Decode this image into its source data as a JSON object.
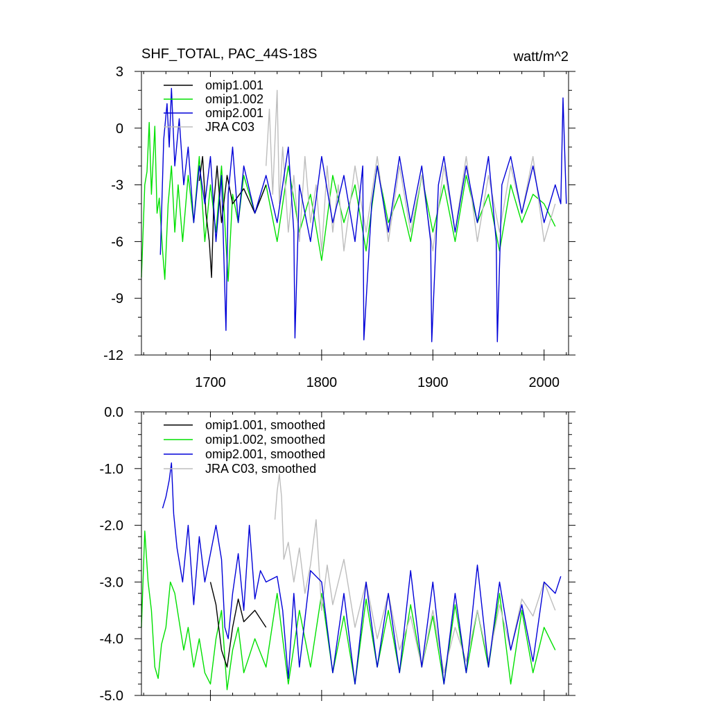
{
  "chart_data": [
    {
      "type": "line",
      "title": "SHF_TOTAL, PAC_44S-18S",
      "units": "watt/m^2",
      "xlim": [
        1638,
        2022
      ],
      "ylim": [
        -12,
        3
      ],
      "x_ticks": [
        1700,
        1800,
        1900,
        2000
      ],
      "x_tick_labels": [
        "1700",
        "1800",
        "1900",
        "2000"
      ],
      "y_ticks": [
        3,
        0,
        -3,
        -6,
        -9,
        -12
      ],
      "y_tick_labels": [
        "3",
        "0",
        "-3",
        "-6",
        "-9",
        "-12"
      ],
      "grid": false,
      "legend_position": "top-left",
      "colors": {
        "omip1.001": "#000000",
        "omip1.002": "#00e000",
        "omip2.001": "#0000d8",
        "JRA C03": "#bdbdbd"
      },
      "series": [
        {
          "name": "omip1.001",
          "color": "#000000",
          "x": [
            1690,
            1693,
            1696,
            1699,
            1701,
            1703,
            1706,
            1710,
            1715,
            1720,
            1730,
            1740,
            1750
          ],
          "y": [
            -2.8,
            -1.5,
            -4.5,
            -6.0,
            -7.9,
            -4.0,
            -2.0,
            -5.0,
            -2.5,
            -4.0,
            -3.2,
            -4.5,
            -3.0
          ]
        },
        {
          "name": "omip1.002",
          "color": "#00e000",
          "x": [
            1638,
            1641,
            1643,
            1645,
            1647,
            1650,
            1652,
            1654,
            1657,
            1659,
            1662,
            1665,
            1668,
            1671,
            1675,
            1680,
            1685,
            1690,
            1695,
            1700,
            1705,
            1710,
            1716,
            1720,
            1725,
            1730,
            1740,
            1750,
            1760,
            1770,
            1780,
            1790,
            1800,
            1810,
            1820,
            1830,
            1840,
            1850,
            1860,
            1870,
            1880,
            1890,
            1900,
            1910,
            1920,
            1930,
            1940,
            1950,
            1960,
            1970,
            1980,
            1990,
            2000,
            2010
          ],
          "y": [
            -7.9,
            -3.0,
            -2.3,
            0.3,
            -3.5,
            0.1,
            -4.5,
            -3.7,
            -6.5,
            -8.0,
            -4.0,
            -2.0,
            -5.5,
            -3.0,
            -6.0,
            -2.5,
            -5.0,
            -1.5,
            -6.0,
            -3.0,
            -5.5,
            -2.0,
            -8.1,
            -3.5,
            -5.0,
            -2.5,
            -4.5,
            -3.0,
            -6.0,
            -2.0,
            -5.5,
            -3.5,
            -7.0,
            -2.5,
            -5.0,
            -3.0,
            -6.5,
            -2.0,
            -5.0,
            -3.5,
            -6.0,
            -2.5,
            -5.5,
            -3.0,
            -6.0,
            -2.5,
            -5.0,
            -3.5,
            -6.5,
            -3.0,
            -5.0,
            -3.5,
            -4.0,
            -5.2
          ]
        },
        {
          "name": "omip2.001",
          "color": "#0000d8",
          "x": [
            1655,
            1658,
            1661,
            1663,
            1665,
            1668,
            1672,
            1676,
            1680,
            1685,
            1690,
            1695,
            1700,
            1705,
            1710,
            1714,
            1716,
            1720,
            1725,
            1730,
            1740,
            1750,
            1760,
            1770,
            1775,
            1776,
            1780,
            1790,
            1800,
            1810,
            1820,
            1830,
            1837,
            1838,
            1845,
            1850,
            1860,
            1870,
            1880,
            1890,
            1898,
            1899,
            1905,
            1910,
            1920,
            1930,
            1940,
            1950,
            1957,
            1958,
            1962,
            1970,
            1980,
            1990,
            2000,
            2010,
            2015,
            2017,
            2020
          ],
          "y": [
            -6.7,
            -0.6,
            1.3,
            -1.0,
            2.1,
            -2.0,
            0.5,
            -3.0,
            -1.0,
            -5.0,
            -2.0,
            -4.0,
            -1.5,
            -6.0,
            -2.5,
            -10.7,
            -3.5,
            -1.0,
            -5.0,
            -2.0,
            -4.5,
            -2.5,
            -5.0,
            -1.0,
            -5.5,
            -11.1,
            -3.0,
            -6.0,
            -1.5,
            -5.0,
            -2.5,
            -6.0,
            -2.0,
            -11.2,
            -4.0,
            -2.0,
            -5.5,
            -1.5,
            -5.0,
            -2.0,
            -6.0,
            -11.3,
            -3.0,
            -1.5,
            -5.5,
            -2.0,
            -5.0,
            -1.5,
            -6.0,
            -11.3,
            -3.0,
            -1.5,
            -4.5,
            -2.0,
            -5.0,
            -3.0,
            -4.0,
            1.6,
            -4.0
          ]
        },
        {
          "name": "JRA C03",
          "color": "#bdbdbd",
          "x": [
            1750,
            1753,
            1756,
            1760,
            1762,
            1765,
            1770,
            1775,
            1780,
            1785,
            1790,
            1795,
            1800,
            1805,
            1810,
            1815,
            1820,
            1830,
            1840,
            1850,
            1860,
            1870,
            1880,
            1890,
            1900,
            1910,
            1920,
            1930,
            1940,
            1950,
            1960,
            1970,
            1980,
            1990,
            2000,
            2010
          ],
          "y": [
            -2.0,
            1.0,
            -3.5,
            2.0,
            -4.0,
            -1.0,
            -5.5,
            -2.5,
            -6.0,
            -1.5,
            -5.0,
            -3.0,
            -6.5,
            -2.0,
            -5.5,
            -3.0,
            -6.5,
            -2.0,
            -5.5,
            -1.5,
            -6.0,
            -2.0,
            -5.5,
            -2.5,
            -6.5,
            -2.0,
            -5.5,
            -1.5,
            -6.0,
            -2.5,
            -5.5,
            -2.0,
            -4.5,
            -1.5,
            -6.0,
            -4.0
          ]
        }
      ]
    },
    {
      "type": "line",
      "xlim": [
        1638,
        2022
      ],
      "ylim": [
        -5.0,
        0.0
      ],
      "x_ticks": [
        1700,
        1800,
        1900,
        2000
      ],
      "x_tick_labels": [],
      "y_ticks": [
        0,
        -1,
        -2,
        -3,
        -4,
        -5
      ],
      "y_tick_labels": [
        "0.0",
        "-1.0",
        "-2.0",
        "-3.0",
        "-4.0",
        "-5.0"
      ],
      "grid": false,
      "legend_position": "top-left",
      "series": [
        {
          "name": "omip1.001, smoothed",
          "color": "#000000",
          "x": [
            1700,
            1705,
            1710,
            1715,
            1720,
            1725,
            1730,
            1740,
            1750
          ],
          "y": [
            -3.0,
            -3.4,
            -4.2,
            -4.5,
            -3.8,
            -3.3,
            -3.7,
            -3.5,
            -3.8
          ]
        },
        {
          "name": "omip1.002, smoothed",
          "color": "#00e000",
          "x": [
            1638,
            1641,
            1644,
            1647,
            1650,
            1653,
            1656,
            1660,
            1664,
            1668,
            1672,
            1676,
            1680,
            1685,
            1690,
            1695,
            1700,
            1705,
            1710,
            1715,
            1720,
            1725,
            1730,
            1740,
            1750,
            1760,
            1765,
            1770,
            1780,
            1790,
            1800,
            1810,
            1820,
            1830,
            1840,
            1850,
            1860,
            1870,
            1880,
            1890,
            1900,
            1910,
            1920,
            1930,
            1940,
            1950,
            1960,
            1970,
            1980,
            1990,
            2000,
            2010
          ],
          "y": [
            -3.8,
            -2.1,
            -3.0,
            -3.5,
            -4.5,
            -4.7,
            -4.1,
            -3.8,
            -3.0,
            -3.2,
            -3.7,
            -4.2,
            -3.8,
            -4.5,
            -4.0,
            -4.6,
            -4.8,
            -4.0,
            -3.5,
            -4.9,
            -4.2,
            -3.8,
            -4.6,
            -4.0,
            -4.5,
            -3.2,
            -4.0,
            -4.8,
            -3.5,
            -4.5,
            -3.2,
            -4.6,
            -3.6,
            -4.8,
            -3.3,
            -4.5,
            -3.5,
            -4.6,
            -3.4,
            -4.5,
            -3.6,
            -4.8,
            -3.4,
            -4.6,
            -3.5,
            -4.5,
            -3.2,
            -4.8,
            -3.5,
            -4.6,
            -3.8,
            -4.2
          ]
        },
        {
          "name": "omip2.001, smoothed",
          "color": "#0000d8",
          "x": [
            1657,
            1660,
            1663,
            1665,
            1667,
            1670,
            1675,
            1680,
            1685,
            1690,
            1695,
            1700,
            1705,
            1710,
            1713,
            1716,
            1720,
            1725,
            1730,
            1735,
            1740,
            1745,
            1750,
            1760,
            1765,
            1770,
            1775,
            1780,
            1790,
            1800,
            1810,
            1820,
            1830,
            1840,
            1850,
            1860,
            1870,
            1880,
            1890,
            1900,
            1910,
            1920,
            1930,
            1940,
            1950,
            1960,
            1970,
            1980,
            1990,
            2000,
            2010,
            2015
          ],
          "y": [
            -1.7,
            -1.5,
            -1.2,
            -0.9,
            -1.8,
            -2.4,
            -3.0,
            -2.0,
            -3.4,
            -2.2,
            -3.0,
            -2.5,
            -2.0,
            -2.6,
            -3.8,
            -4.0,
            -3.2,
            -2.5,
            -3.5,
            -2.0,
            -3.3,
            -2.8,
            -3.0,
            -2.9,
            -3.5,
            -4.7,
            -3.2,
            -4.5,
            -2.8,
            -3.0,
            -4.6,
            -3.2,
            -4.8,
            -3.0,
            -4.5,
            -3.2,
            -4.6,
            -2.8,
            -4.5,
            -3.0,
            -4.8,
            -3.2,
            -4.6,
            -2.7,
            -4.5,
            -3.0,
            -4.2,
            -3.4,
            -4.4,
            -3.0,
            -3.2,
            -2.9
          ]
        },
        {
          "name": "JRA C03, smoothed",
          "color": "#bdbdbd",
          "x": [
            1758,
            1760,
            1762,
            1764,
            1766,
            1770,
            1775,
            1780,
            1785,
            1790,
            1795,
            1800,
            1805,
            1810,
            1820,
            1830,
            1840,
            1850,
            1860,
            1870,
            1880,
            1890,
            1900,
            1910,
            1920,
            1930,
            1940,
            1950,
            1960,
            1970,
            1980,
            1990,
            2000,
            2010
          ],
          "y": [
            -1.9,
            -1.4,
            -1.1,
            -1.5,
            -2.6,
            -2.3,
            -3.0,
            -2.4,
            -3.2,
            -2.7,
            -1.9,
            -3.5,
            -2.7,
            -3.4,
            -2.6,
            -3.8,
            -3.0,
            -4.0,
            -3.2,
            -4.2,
            -3.6,
            -4.5,
            -3.5,
            -4.6,
            -3.8,
            -4.4,
            -3.5,
            -4.4,
            -3.4,
            -4.2,
            -3.3,
            -3.6,
            -3.0,
            -3.5
          ]
        }
      ]
    }
  ]
}
